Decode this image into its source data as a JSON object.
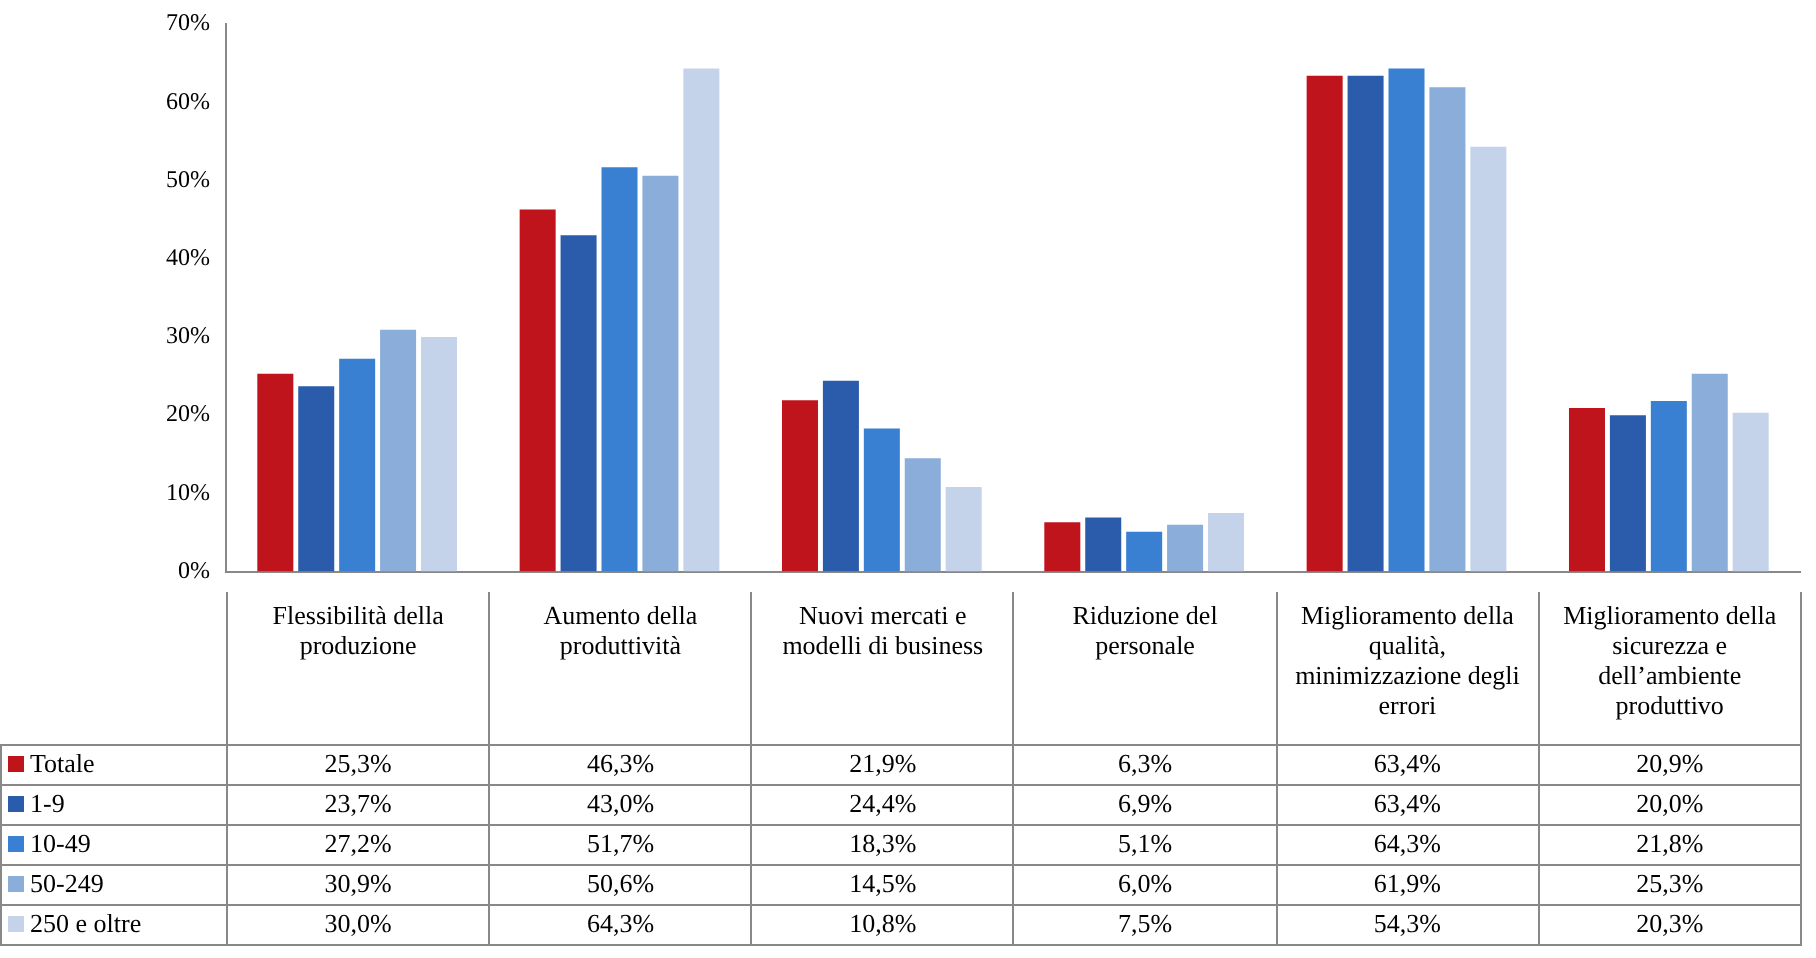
{
  "chart_data": {
    "type": "bar",
    "categories": [
      "Flessibilità della produzione",
      "Aumento della produttività",
      "Nuovi mercati e modelli di business",
      "Riduzione del personale",
      "Miglioramento della qualità, minimizzazione degli errori",
      "Miglioramento della sicurezza e dell’ambiente produttivo"
    ],
    "series": [
      {
        "name": "Totale",
        "color": "#c0141c",
        "values": [
          25.3,
          46.3,
          21.9,
          6.3,
          63.4,
          20.9
        ],
        "value_labels": [
          "25,3%",
          "46,3%",
          "21,9%",
          "6,3%",
          "63,4%",
          "20,9%"
        ]
      },
      {
        "name": "1-9",
        "color": "#2a5cab",
        "values": [
          23.7,
          43.0,
          24.4,
          6.9,
          63.4,
          20.0
        ],
        "value_labels": [
          "23,7%",
          "43,0%",
          "24,4%",
          "6,9%",
          "63,4%",
          "20,0%"
        ]
      },
      {
        "name": "10-49",
        "color": "#3a80d2",
        "values": [
          27.2,
          51.7,
          18.3,
          5.1,
          64.3,
          21.8
        ],
        "value_labels": [
          "27,2%",
          "51,7%",
          "18,3%",
          "5,1%",
          "64,3%",
          "21,8%"
        ]
      },
      {
        "name": "50-249",
        "color": "#8badd9",
        "values": [
          30.9,
          50.6,
          14.5,
          6.0,
          61.9,
          25.3
        ],
        "value_labels": [
          "30,9%",
          "50,6%",
          "14,5%",
          "6,0%",
          "61,9%",
          "25,3%"
        ]
      },
      {
        "name": "250 e oltre",
        "color": "#c4d3ea",
        "values": [
          30.0,
          64.3,
          10.8,
          7.5,
          54.3,
          20.3
        ],
        "value_labels": [
          "30,0%",
          "64,3%",
          "10,8%",
          "7,5%",
          "54,3%",
          "20,3%"
        ]
      }
    ],
    "ylim": [
      0,
      70
    ],
    "yticks": [
      {
        "value": 0,
        "label": "0%"
      },
      {
        "value": 10,
        "label": "10%"
      },
      {
        "value": 20,
        "label": "20%"
      },
      {
        "value": 30,
        "label": "30%"
      },
      {
        "value": 40,
        "label": "40%"
      },
      {
        "value": 50,
        "label": "50%"
      },
      {
        "value": 60,
        "label": "60%"
      },
      {
        "value": 70,
        "label": "70%"
      }
    ],
    "legend": "bottom",
    "grid": false
  }
}
